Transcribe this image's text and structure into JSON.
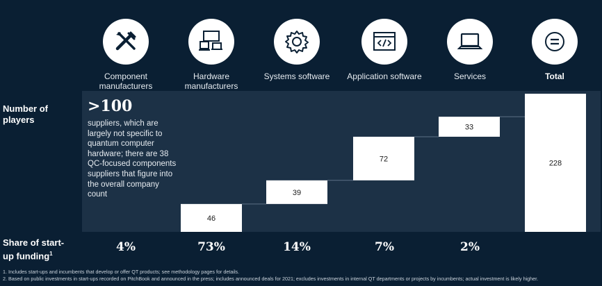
{
  "categories": [
    {
      "label": "Component manufacturers",
      "icon": "tools-icon"
    },
    {
      "label": "Hardware manufacturers",
      "icon": "hardware-devices-icon"
    },
    {
      "label": "Systems software",
      "icon": "gear-icon"
    },
    {
      "label": "Application software",
      "icon": "code-window-icon"
    },
    {
      "label": "Services",
      "icon": "laptop-icon"
    },
    {
      "label": "Total",
      "icon": "equals-icon"
    }
  ],
  "rows": {
    "players_label": "Number of players",
    "funding_label": "Share of start-up funding",
    "funding_sup": "1"
  },
  "component_note": {
    "headline": ">100",
    "text": "suppliers, which are largely not specific to quantum computer hardware; there are 38 QC-focused components suppliers that figure into the overall company count"
  },
  "shares": [
    "4%",
    "73%",
    "14%",
    "7%",
    "2%"
  ],
  "footnotes": [
    "1. Includes start-ups and incumbents that develop or offer QT products; see methodology pages for details.",
    "2. Based on public investments in start-ups recorded on PitchBook and announced in the press; includes announced deals for 2021; excludes investments in internal QT departments or projects by incumbents; actual investment is likely higher."
  ],
  "chart_data": {
    "type": "bar",
    "subtype": "waterfall",
    "categories": [
      "Hardware manufacturers",
      "Systems software",
      "Application software",
      "Services",
      "Total"
    ],
    "values": [
      46,
      39,
      72,
      33,
      228
    ],
    "value_labels": [
      "46",
      "39",
      "72",
      "33",
      "228"
    ],
    "is_total": [
      false,
      false,
      false,
      false,
      true
    ],
    "ylim": [
      0,
      228
    ],
    "colors": {
      "bar": "#ffffff",
      "band": "#1c3146",
      "background": "#0a1f33",
      "label": "#1a1a1a"
    }
  }
}
